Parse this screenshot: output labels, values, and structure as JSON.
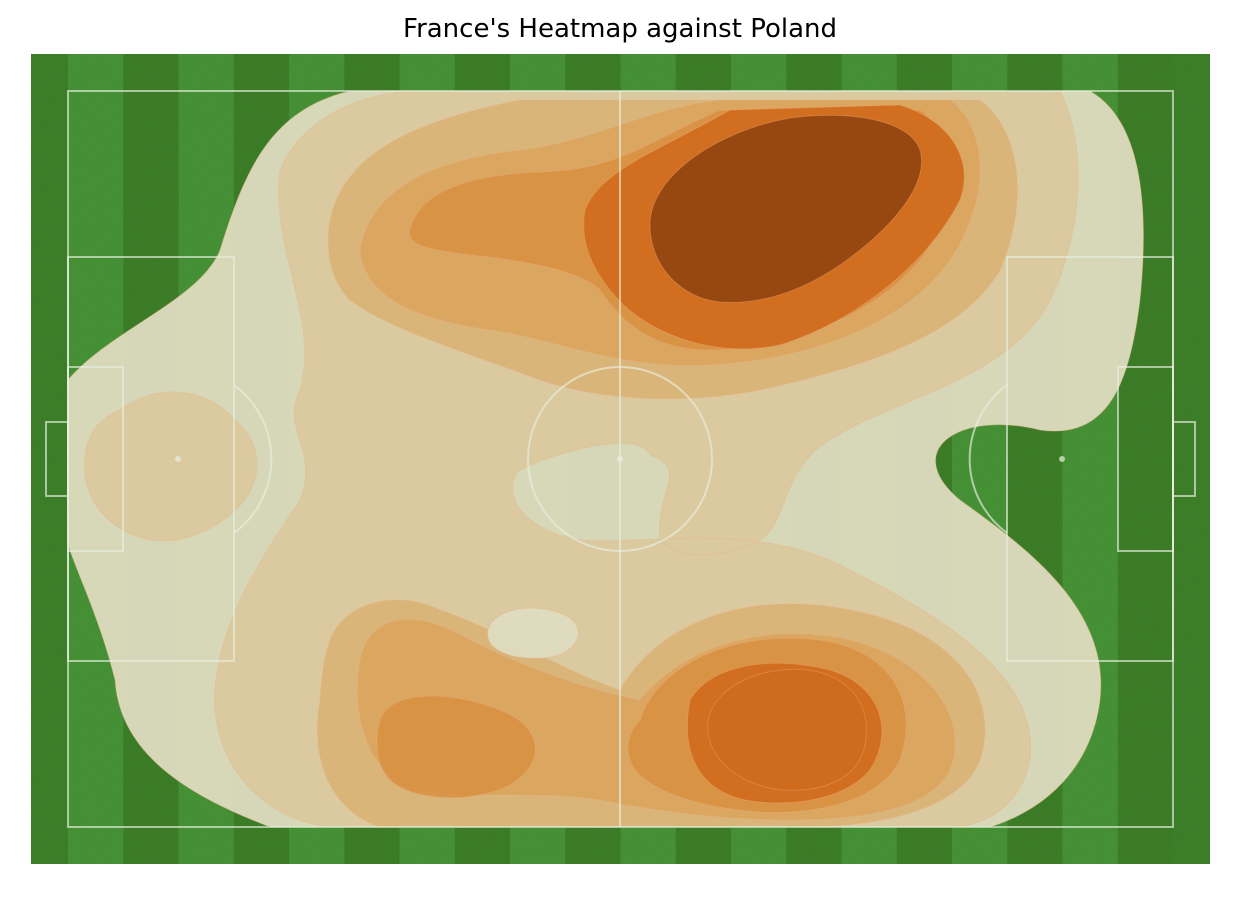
{
  "figure": {
    "title": "France's Heatmap against Poland"
  },
  "colors": {
    "grass_light": "#4a9a3a",
    "grass_dark": "#3e8128",
    "pitch_lines": "#e8efe0",
    "heat_low": "#dedcc0",
    "heat_mid": "#d9a25a",
    "heat_high": "#d06a1c",
    "heat_peak": "#934410"
  },
  "chart_data": {
    "type": "heatmap",
    "title": "France's Heatmap against Poland",
    "xlabel": "",
    "ylabel": "",
    "pitch": {
      "type": "football",
      "length": 120,
      "width": 80,
      "stripes": 20
    },
    "xlim": [
      0,
      120
    ],
    "ylim": [
      0,
      80
    ],
    "grid": false,
    "legend": "none",
    "density_levels": 10,
    "hotspots": [
      {
        "x": 70,
        "y": 73,
        "intensity": 1.0
      },
      {
        "x": 73,
        "y": 13,
        "intensity": 0.75
      },
      {
        "x": 40,
        "y": 18,
        "intensity": 0.45
      },
      {
        "x": 40,
        "y": 63,
        "intensity": 0.45
      },
      {
        "x": 10,
        "y": 40,
        "intensity": 0.3
      }
    ]
  }
}
